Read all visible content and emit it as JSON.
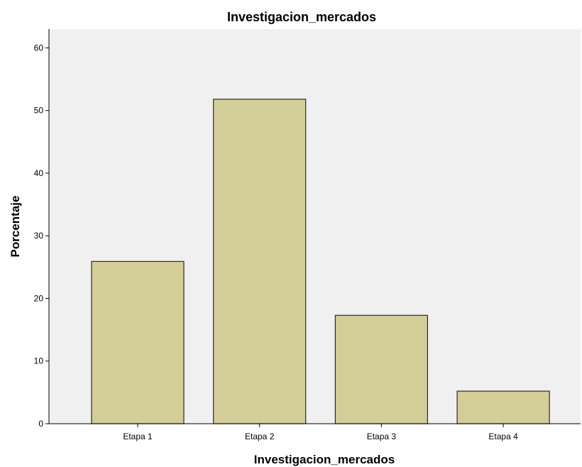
{
  "chart_data": {
    "type": "bar",
    "title": "Investigacion_mercados",
    "xlabel": "Investigacion_mercados",
    "ylabel": "Porcentaje",
    "categories": [
      "Etapa 1",
      "Etapa 2",
      "Etapa 3",
      "Etapa 4"
    ],
    "values": [
      25.9,
      51.8,
      17.3,
      5.2
    ],
    "ylim": [
      0,
      63
    ],
    "yticks": [
      "0",
      "10",
      "20",
      "30",
      "40",
      "50",
      "60"
    ],
    "grid": false,
    "legend": "none",
    "colors": {
      "bar_fill": "#d3ce97",
      "bar_stroke": "#2b2b2b",
      "plot_background": "#f0f0f0",
      "axis": "#000000"
    }
  }
}
